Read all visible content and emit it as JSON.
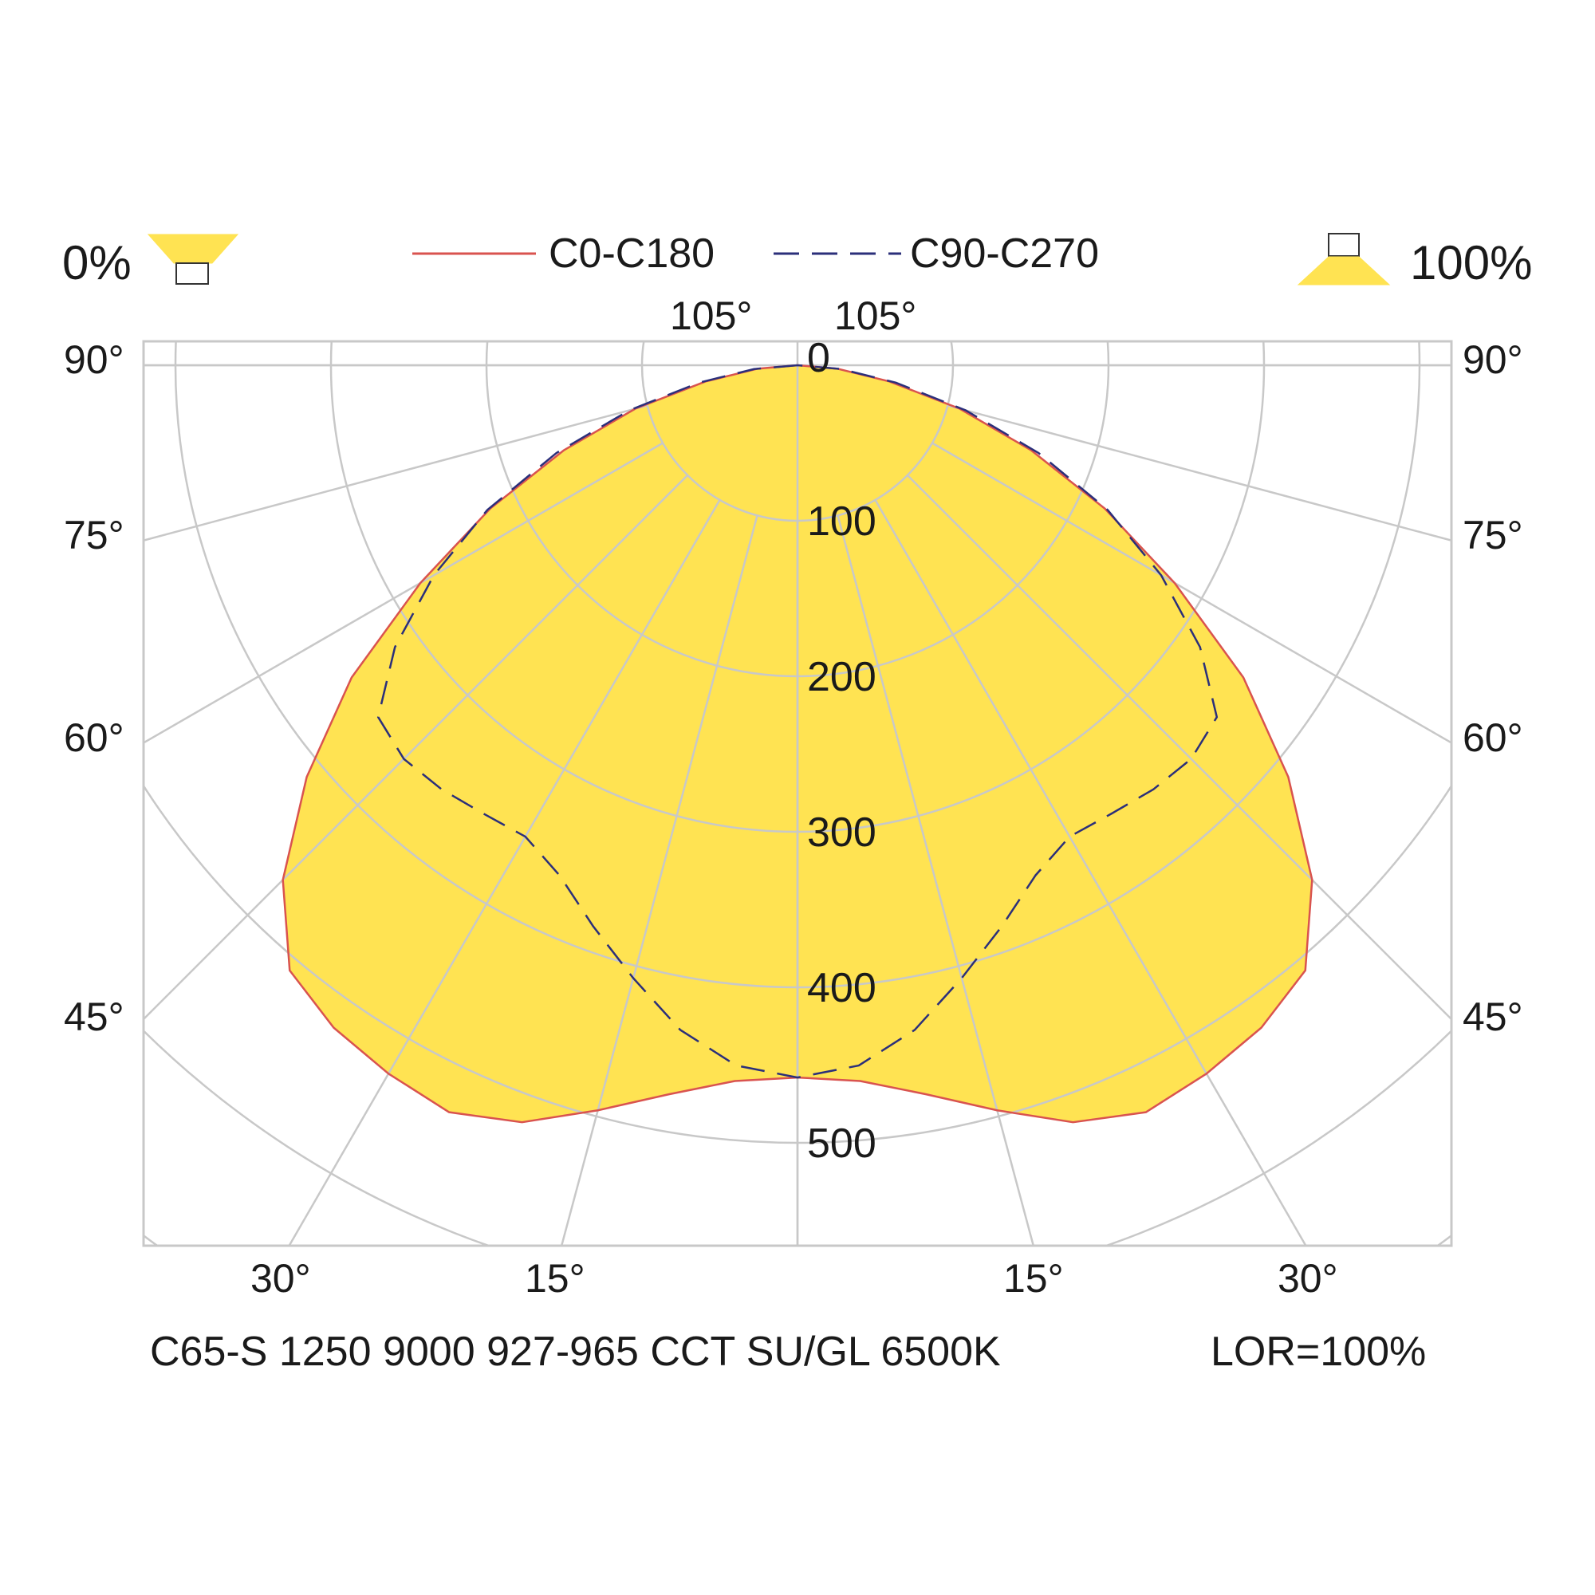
{
  "chart_data": {
    "type": "polar-light-distribution",
    "legend": {
      "left_label": "0%",
      "right_label": "100%",
      "series": [
        {
          "name": "C0-C180",
          "color": "#d9534f",
          "style": "solid"
        },
        {
          "name": "C90-C270",
          "color": "#2b2f7a",
          "style": "dashed"
        }
      ]
    },
    "fill_color": "#ffe352",
    "grid_color": "#c8c8c8",
    "radial_ticks": [
      100,
      200,
      300,
      400,
      500
    ],
    "radial_tick_labels": [
      "100",
      "200",
      "300",
      "400",
      "500"
    ],
    "r_max": 560,
    "zero_label": "0",
    "angle_labels": {
      "top": [
        "105°",
        "105°"
      ],
      "left": [
        "90°",
        "75°",
        "60°",
        "45°"
      ],
      "right": [
        "90°",
        "75°",
        "60°",
        "45°"
      ],
      "bottom": [
        "30°",
        "15°",
        "15°",
        "30°"
      ]
    },
    "series": [
      {
        "name": "C0-C180",
        "angles": [
          0,
          5,
          10,
          15,
          20,
          25,
          30,
          35,
          40,
          45,
          50,
          55,
          60,
          65,
          70,
          75,
          80,
          85,
          90
        ],
        "values": [
          458,
          462,
          476,
          496,
          518,
          530,
          526,
          520,
          508,
          468,
          412,
          350,
          280,
          218,
          160,
          108,
          60,
          26,
          0
        ]
      },
      {
        "name": "C90-C270",
        "angles": [
          0,
          5,
          10,
          15,
          20,
          25,
          30,
          35,
          40,
          45,
          50,
          55,
          60,
          65,
          70,
          75,
          80,
          85,
          90
        ],
        "values": [
          458,
          452,
          434,
          408,
          384,
          362,
          350,
          352,
          356,
          358,
          352,
          316,
          270,
          220,
          165,
          112,
          64,
          28,
          0
        ]
      }
    ],
    "footer_left": "C65-S 1250 9000 927-965 CCT SU/GL 6500K",
    "footer_right": "LOR=100%"
  }
}
